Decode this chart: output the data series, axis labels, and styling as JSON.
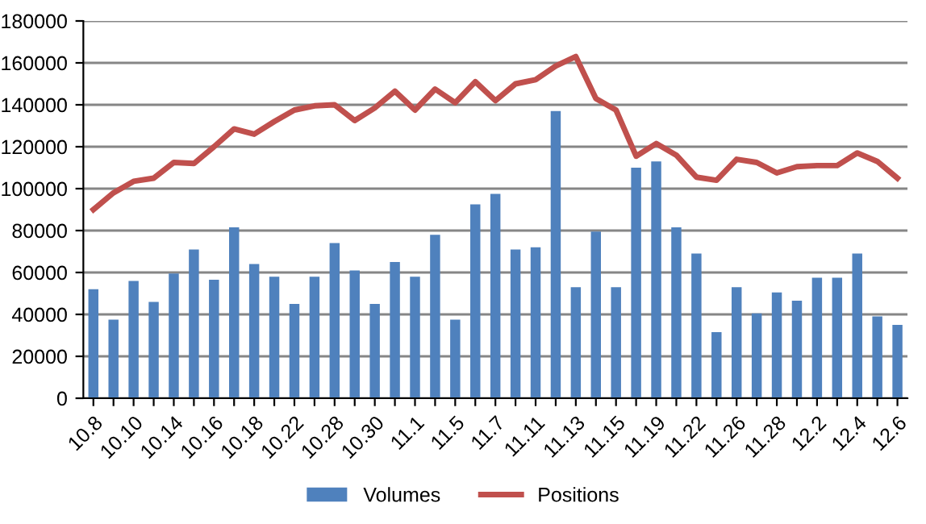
{
  "chart_data": {
    "type": "bar",
    "categories": [
      "10.8",
      null,
      "10.10",
      null,
      "10.14",
      null,
      "10.16",
      null,
      "10.18",
      null,
      "10.22",
      null,
      "10.28",
      null,
      "10.30",
      null,
      "11.1",
      null,
      "11.5",
      null,
      "11.7",
      null,
      "11.11",
      null,
      "11.13",
      null,
      "11.15",
      null,
      "11.19",
      null,
      "11.22",
      null,
      "11.26",
      null,
      "11.28",
      null,
      "12.2",
      null,
      "12.4",
      null,
      "12.6"
    ],
    "series": [
      {
        "name": "Volumes",
        "color": "#4f81bd",
        "values": [
          52000,
          37500,
          56000,
          46000,
          59500,
          71000,
          56500,
          81500,
          64000,
          58000,
          45000,
          58000,
          74000,
          61000,
          45000,
          65000,
          58000,
          78000,
          37500,
          92500,
          97500,
          71000,
          72000,
          137000,
          53000,
          79500,
          53000,
          110000,
          113000,
          81500,
          69000,
          31500,
          53000,
          40500,
          50500,
          46500,
          57500,
          57500,
          69000,
          39000,
          35000
        ]
      },
      {
        "name": "Positions",
        "type": "line",
        "color": "#c0504d",
        "values": [
          90000,
          98000,
          103500,
          105000,
          112500,
          112000,
          120000,
          128500,
          126000,
          132000,
          137500,
          139500,
          140000,
          132500,
          138500,
          146500,
          137500,
          147500,
          141000,
          151000,
          142000,
          150000,
          152000,
          158500,
          163000,
          143000,
          137500,
          115500,
          121500,
          116000,
          105500,
          104000,
          114000,
          112500,
          107500,
          110500,
          111000,
          111000,
          117000,
          113000,
          105000
        ]
      }
    ],
    "ylim": [
      0,
      180000
    ],
    "yticks": [
      0,
      20000,
      40000,
      60000,
      80000,
      100000,
      120000,
      140000,
      160000,
      180000
    ],
    "grid": "y",
    "legend": "bottom"
  }
}
